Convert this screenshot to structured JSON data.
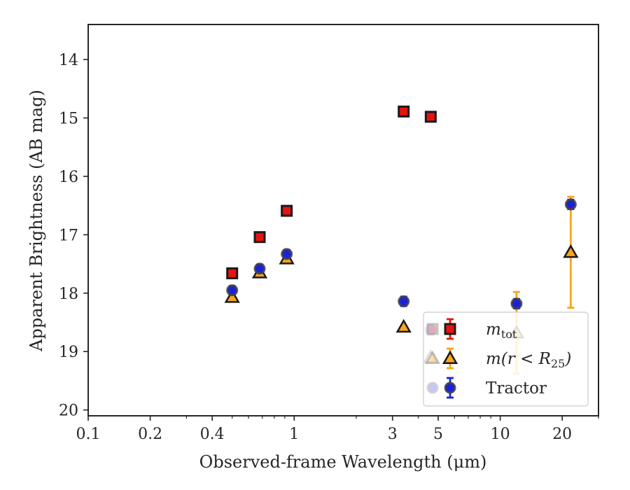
{
  "chart_data": {
    "type": "scatter",
    "xlabel": "Observed-frame Wavelength (μm)",
    "ylabel": "Apparent Brightness (AB mag)",
    "xscale": "log",
    "xlim": [
      0.1,
      30
    ],
    "ylim": [
      20.1,
      13.4
    ],
    "y_inverted": true,
    "grid": false,
    "legend_placement": "lower-right",
    "x_ticks": [
      {
        "value": 0.1,
        "label": "0.1"
      },
      {
        "value": 0.2,
        "label": "0.2"
      },
      {
        "value": 0.4,
        "label": "0.4"
      },
      {
        "value": 1,
        "label": "1"
      },
      {
        "value": 3,
        "label": "3"
      },
      {
        "value": 5,
        "label": "5"
      },
      {
        "value": 10,
        "label": "10"
      },
      {
        "value": 20,
        "label": "20"
      }
    ],
    "y_ticks": [
      {
        "value": 14,
        "label": "14"
      },
      {
        "value": 15,
        "label": "15"
      },
      {
        "value": 16,
        "label": "16"
      },
      {
        "value": 17,
        "label": "17"
      },
      {
        "value": 18,
        "label": "18"
      },
      {
        "value": 19,
        "label": "19"
      },
      {
        "value": 20,
        "label": "20"
      }
    ],
    "series": [
      {
        "name_main": "m",
        "name_sub": "tot",
        "marker": "square",
        "color": "#e8130e",
        "errcolor": "#e8130e",
        "points": [
          {
            "x": 0.5,
            "y": 17.66,
            "err": 0.03
          },
          {
            "x": 0.68,
            "y": 17.04,
            "err": 0.03
          },
          {
            "x": 0.92,
            "y": 16.59,
            "err": 0.03
          },
          {
            "x": 3.4,
            "y": 14.89,
            "err": 0.03
          },
          {
            "x": 4.6,
            "y": 14.98,
            "err": 0.03
          }
        ]
      },
      {
        "name_main": "m(r < R",
        "name_sub": "25",
        "name_end": ")",
        "marker": "triangle",
        "color": "#f9a51a",
        "errcolor": "#f9a51a",
        "points": [
          {
            "x": 0.5,
            "y": 18.07,
            "err": 0.03
          },
          {
            "x": 0.68,
            "y": 17.65,
            "err": 0.03
          },
          {
            "x": 0.92,
            "y": 17.41,
            "err": 0.03
          },
          {
            "x": 3.4,
            "y": 18.58,
            "err": 0.03
          },
          {
            "x": 4.6,
            "y": 19.1,
            "err": 0.05
          },
          {
            "x": 12.0,
            "y": 18.68,
            "err": 0.7
          },
          {
            "x": 22.0,
            "y": 17.3,
            "err": 0.95
          }
        ]
      },
      {
        "name_main": "Tractor",
        "marker": "circle",
        "color": "#1a22d9",
        "errcolor": "#1a22d9",
        "points": [
          {
            "x": 0.5,
            "y": 17.95,
            "err": 0.07
          },
          {
            "x": 0.68,
            "y": 17.58,
            "err": 0.07
          },
          {
            "x": 0.92,
            "y": 17.33,
            "err": 0.07
          },
          {
            "x": 3.4,
            "y": 18.14,
            "err": 0.08
          },
          {
            "x": 4.6,
            "y": 18.63,
            "err": 0.08
          },
          {
            "x": 12.0,
            "y": 18.18,
            "err": 0.08
          },
          {
            "x": 22.0,
            "y": 16.48,
            "err": 0.08
          }
        ]
      }
    ]
  }
}
